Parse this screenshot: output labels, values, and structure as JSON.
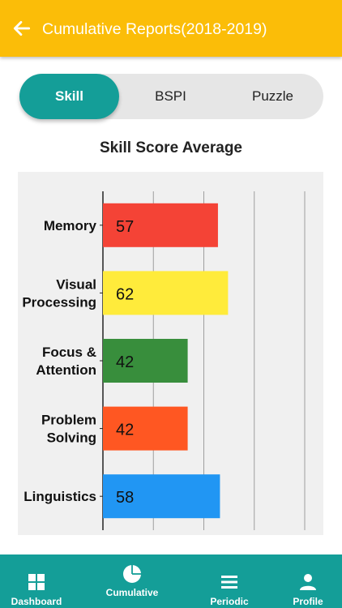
{
  "app_bar": {
    "title": "Cumulative Reports(2018-2019)"
  },
  "segments": [
    {
      "label": "Skill",
      "active": true
    },
    {
      "label": "BSPI",
      "active": false
    },
    {
      "label": "Puzzle",
      "active": false
    }
  ],
  "chart_data": {
    "type": "bar",
    "orientation": "horizontal",
    "title": "Skill Score Average",
    "categories": [
      "Memory",
      "Visual Processing",
      "Focus & Attention",
      "Problem Solving",
      "Linguistics"
    ],
    "category_lines": [
      [
        "Memory"
      ],
      [
        "Visual",
        "Processing"
      ],
      [
        "Focus &",
        "Attention"
      ],
      [
        "Problem",
        "Solving"
      ],
      [
        "Linguistics"
      ]
    ],
    "values": [
      57,
      62,
      42,
      42,
      58
    ],
    "data_labels": [
      "57",
      "62",
      "42",
      "42",
      "58"
    ],
    "colors": [
      "#f44336",
      "#ffeb3b",
      "#388e3c",
      "#ff5722",
      "#2196f3"
    ],
    "xlim": [
      0,
      100
    ],
    "grid": true,
    "legend": "none",
    "xlabel": "",
    "ylabel": ""
  },
  "tabs": [
    {
      "label": "Dashboard",
      "icon": "dashboard-icon",
      "active": false
    },
    {
      "label": "Cumulative",
      "icon": "pie-chart-icon",
      "active": true
    },
    {
      "label": "Periodic",
      "icon": "list-icon",
      "active": false
    },
    {
      "label": "Profile",
      "icon": "person-icon",
      "active": false
    }
  ],
  "colors": {
    "app_bar": "#fbbd08",
    "accent": "#149e98",
    "segment_bg": "#e6e6e6",
    "chart_bg": "#f0f0f0"
  }
}
